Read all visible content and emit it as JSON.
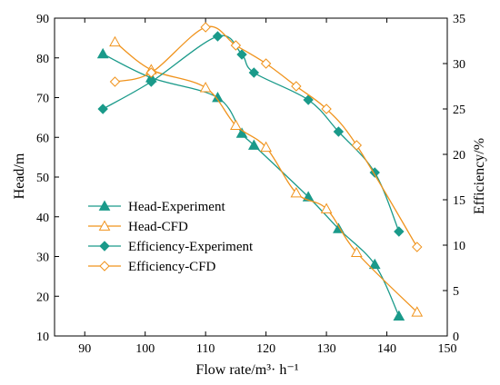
{
  "chart_data": {
    "type": "line",
    "title": "",
    "xlabel": "Flow rate/m³· h⁻¹",
    "ylabel_left": "Head/m",
    "ylabel_right": "Efficiency/%",
    "xlim": [
      85,
      150
    ],
    "ylim_left": [
      10,
      90
    ],
    "ylim_right": [
      0,
      35
    ],
    "xticks": [
      "90",
      "100",
      "110",
      "120",
      "130",
      "140",
      "150"
    ],
    "yticks_left": [
      "10",
      "20",
      "30",
      "40",
      "50",
      "60",
      "70",
      "80",
      "90"
    ],
    "yticks_right": [
      "0",
      "5",
      "10",
      "15",
      "20",
      "25",
      "30",
      "35"
    ],
    "legend_position": "left-middle",
    "grid": false,
    "series": [
      {
        "name": "Head-Experiment",
        "axis": "left",
        "color": "#1a9a8a",
        "marker": "triangle-filled",
        "x": [
          93,
          101,
          112,
          116,
          118,
          127,
          132,
          138,
          142
        ],
        "y": [
          81,
          75,
          70,
          61,
          58,
          45,
          37,
          28,
          15
        ]
      },
      {
        "name": "Head-CFD",
        "axis": "left",
        "color": "#f0931c",
        "marker": "triangle-open",
        "x": [
          95,
          101,
          110,
          115,
          120,
          125,
          130,
          135,
          145
        ],
        "y": [
          84,
          77,
          72.5,
          63,
          57.5,
          46,
          42,
          31,
          16
        ]
      },
      {
        "name": "Efficiency-Experiment",
        "axis": "right",
        "color": "#1a9a8a",
        "marker": "diamond-filled",
        "x": [
          93,
          101,
          112,
          116,
          118,
          127,
          132,
          138,
          142
        ],
        "y": [
          25,
          28,
          33,
          31,
          29,
          26,
          22.5,
          18,
          11.5
        ]
      },
      {
        "name": "Efficiency-CFD",
        "axis": "right",
        "color": "#f0931c",
        "marker": "diamond-open",
        "x": [
          95,
          101,
          110,
          115,
          120,
          125,
          130,
          135,
          145
        ],
        "y": [
          28,
          29,
          34,
          32,
          30,
          27.5,
          25,
          21,
          9.8
        ]
      }
    ]
  }
}
